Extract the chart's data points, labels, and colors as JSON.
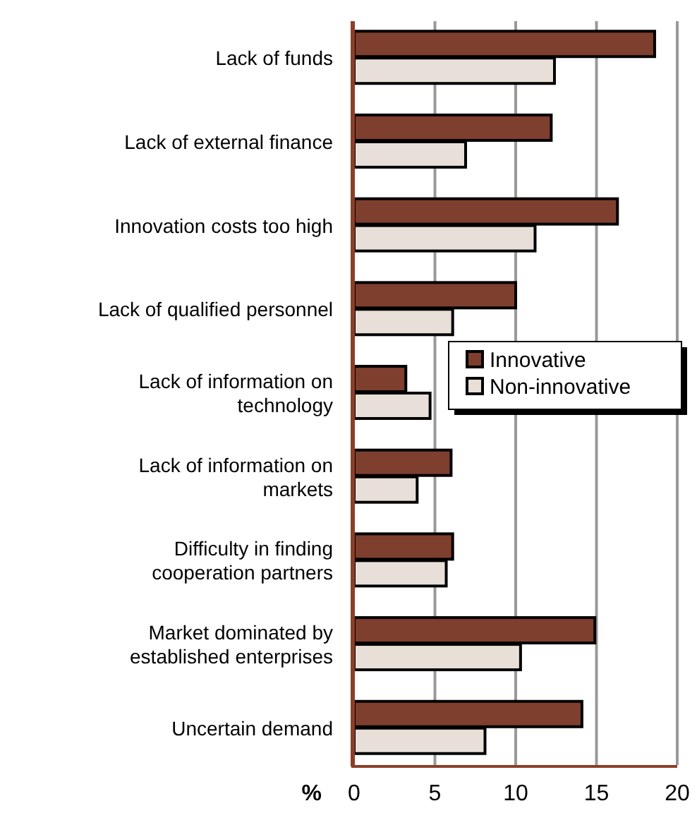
{
  "chart_data": {
    "type": "bar",
    "orientation": "horizontal",
    "xlabel": "%",
    "categories": [
      "Lack of funds",
      "Lack of external finance",
      "Innovation costs too high",
      "Lack of qualified personnel",
      "Lack of information on technology",
      "Lack of information on markets",
      "Difficulty in finding cooperation partners",
      "Market dominated by established enterprises",
      "Uncertain demand"
    ],
    "series": [
      {
        "name": "Innovative",
        "color": "#7f3f2e",
        "values": [
          18.6,
          12.2,
          16.3,
          10.0,
          3.2,
          6.0,
          6.1,
          14.9,
          14.1
        ]
      },
      {
        "name": "Non-innovative",
        "color": "#e8e0d8",
        "values": [
          12.4,
          6.9,
          11.2,
          6.1,
          4.7,
          3.9,
          5.7,
          10.3,
          8.1
        ]
      }
    ],
    "xlim": [
      0,
      20
    ],
    "xticks": [
      0,
      5,
      10,
      15,
      20
    ],
    "grid": "x",
    "legend": "right"
  }
}
